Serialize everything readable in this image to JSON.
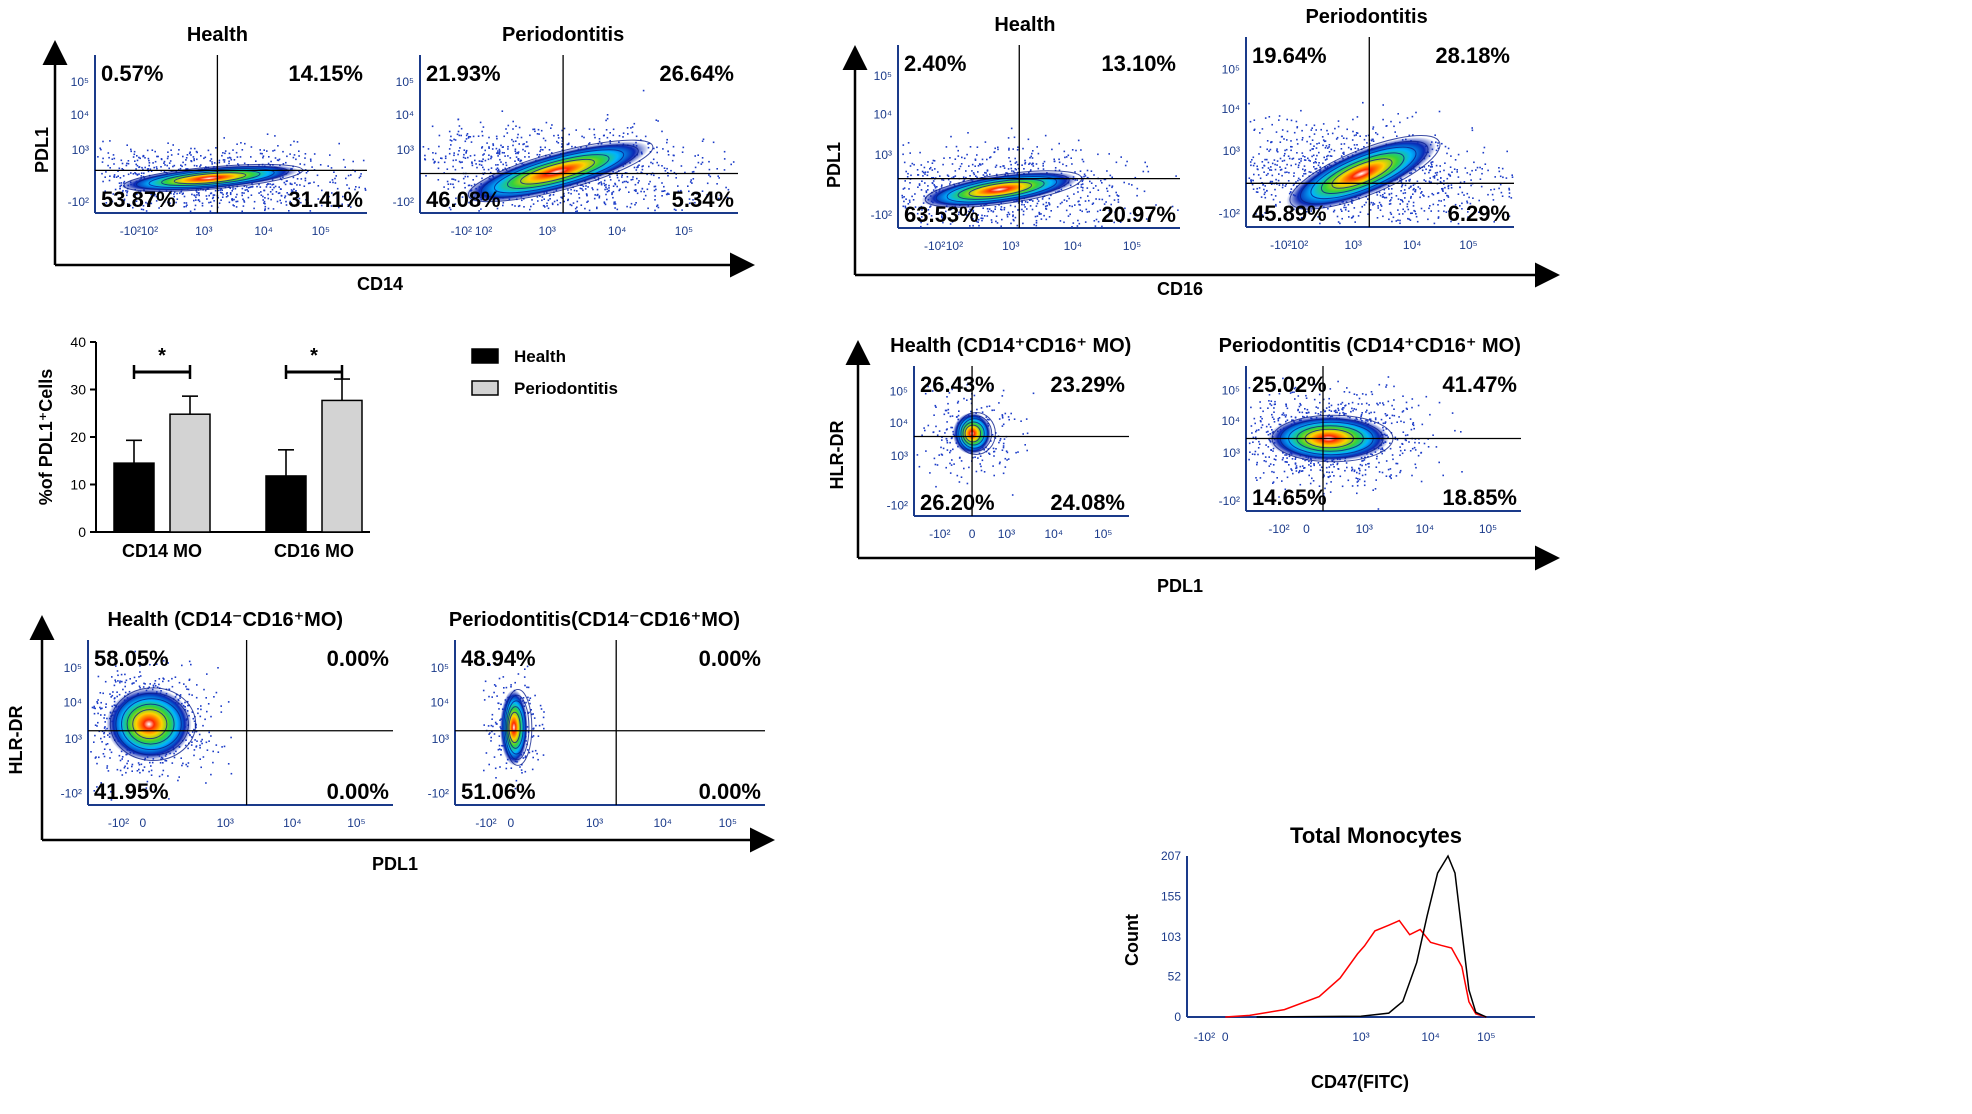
{
  "colors": {
    "axis": "#000000",
    "health_bar": "#000000",
    "perio_bar": "#d3d3d3",
    "hist_red": "#ff0000",
    "hist_black": "#000000",
    "tick_blue": "#1a3a8a"
  },
  "icons": [
    "right-arrow-icon",
    "up-arrow-icon"
  ],
  "fcs_ticks": {
    "x": [
      "-10²",
      "10²",
      "10³",
      "10⁴",
      "10⁵"
    ],
    "x0": [
      "-10²",
      "0",
      "10³",
      "10⁴",
      "10⁵"
    ],
    "y": [
      "10⁵",
      "10⁴",
      "10³",
      "-10²"
    ]
  },
  "panels": {
    "cd14": {
      "xlabel": "CD14",
      "ylabel": "PDL1",
      "plots": [
        {
          "title": "Health",
          "q": [
            "0.57%",
            "14.15%",
            "53.87%",
            "31.41%"
          ]
        },
        {
          "title": "Periodontitis",
          "q": [
            "21.93%",
            "26.64%",
            "46.08%",
            "5.34%"
          ]
        }
      ]
    },
    "cd16": {
      "xlabel": "CD16",
      "ylabel": "PDL1",
      "plots": [
        {
          "title": "Health",
          "q": [
            "2.40%",
            "13.10%",
            "63.53%",
            "20.97%"
          ]
        },
        {
          "title": "Periodontitis",
          "q": [
            "19.64%",
            "28.18%",
            "45.89%",
            "6.29%"
          ]
        }
      ]
    },
    "hlr_pos": {
      "xlabel": "PDL1",
      "ylabel": "HLR-DR",
      "plots": [
        {
          "title": "Health (CD14⁺CD16⁺ MO)",
          "q": [
            "26.43%",
            "23.29%",
            "26.20%",
            "24.08%"
          ]
        },
        {
          "title": "Periodontitis (CD14⁺CD16⁺ MO)",
          "q": [
            "25.02%",
            "41.47%",
            "14.65%",
            "18.85%"
          ]
        }
      ]
    },
    "hlr_neg": {
      "xlabel": "PDL1",
      "ylabel": "HLR-DR",
      "plots": [
        {
          "title": "Health (CD14⁻CD16⁺MO)",
          "q": [
            "58.05%",
            "0.00%",
            "41.95%",
            "0.00%"
          ]
        },
        {
          "title": "Periodontitis(CD14⁻CD16⁺MO)",
          "q": [
            "48.94%",
            "0.00%",
            "51.06%",
            "0.00%"
          ]
        }
      ]
    }
  },
  "chart_data": [
    {
      "type": "bar",
      "title": "",
      "ylabel": "%of PDL1⁺Cells",
      "xlabel": "",
      "categories": [
        "CD14 MO",
        "CD16 MO"
      ],
      "ylim": [
        0,
        40
      ],
      "yticks": [
        "0",
        "10",
        "20",
        "30",
        "40"
      ],
      "series": [
        {
          "name": "Health",
          "values": [
            14.5,
            11.8
          ],
          "errors": [
            4.8,
            5.5
          ]
        },
        {
          "name": "Periodontitis",
          "values": [
            24.8,
            27.7
          ],
          "errors": [
            3.8,
            4.5
          ]
        }
      ],
      "significance": [
        "*",
        "*"
      ],
      "legend": "top-right"
    },
    {
      "type": "line",
      "title": "Total Monocytes",
      "xlabel": "CD47(FITC)",
      "ylabel": "Count",
      "yticks": [
        "0",
        "52",
        "103",
        "155",
        "207"
      ],
      "ylim": [
        0,
        207
      ],
      "xticks": [
        "-10²",
        "0",
        "10³",
        "10⁴",
        "10⁵"
      ],
      "series": [
        {
          "name": "red",
          "x": [
            0.55,
            0.9,
            1.4,
            1.9,
            2.2,
            2.45,
            2.55,
            2.7,
            2.9,
            3.05,
            3.2,
            3.35,
            3.5,
            3.65,
            3.8,
            3.95,
            4.05,
            4.15,
            4.3
          ],
          "y": [
            0,
            2,
            10,
            28,
            55,
            80,
            95,
            105,
            122,
            130,
            112,
            108,
            98,
            96,
            88,
            60,
            20,
            4,
            0
          ]
        },
        {
          "name": "black",
          "x": [
            1.0,
            2.5,
            2.9,
            3.1,
            3.3,
            3.45,
            3.6,
            3.75,
            3.85,
            3.95,
            4.05,
            4.15,
            4.3
          ],
          "y": [
            0,
            1,
            5,
            20,
            70,
            130,
            185,
            207,
            185,
            110,
            35,
            6,
            0
          ]
        }
      ]
    }
  ]
}
